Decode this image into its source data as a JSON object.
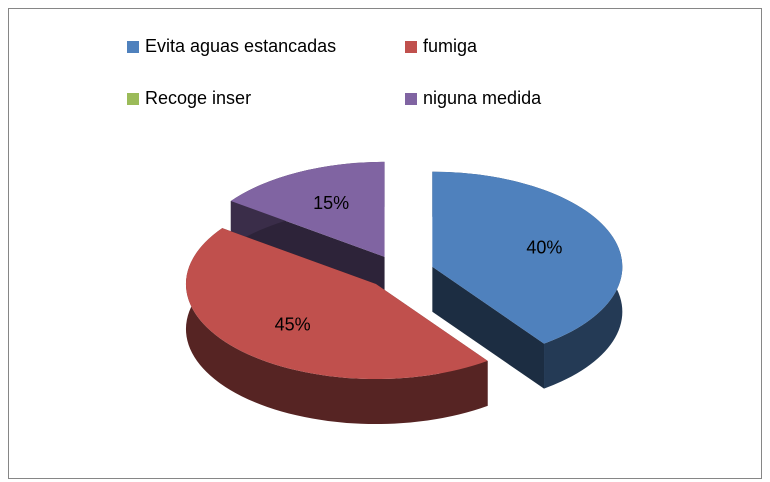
{
  "chart_data": {
    "type": "pie",
    "categories": [
      "Evita aguas estancadas",
      "fumiga",
      "Recoge inser",
      "niguna medida"
    ],
    "values": [
      40,
      45,
      0,
      15
    ],
    "value_labels": [
      "40%",
      "45%",
      null,
      "15%"
    ],
    "colors": [
      "#4f81bd",
      "#c0504d",
      "#9bbb59",
      "#8064a2"
    ],
    "legend": "top"
  }
}
